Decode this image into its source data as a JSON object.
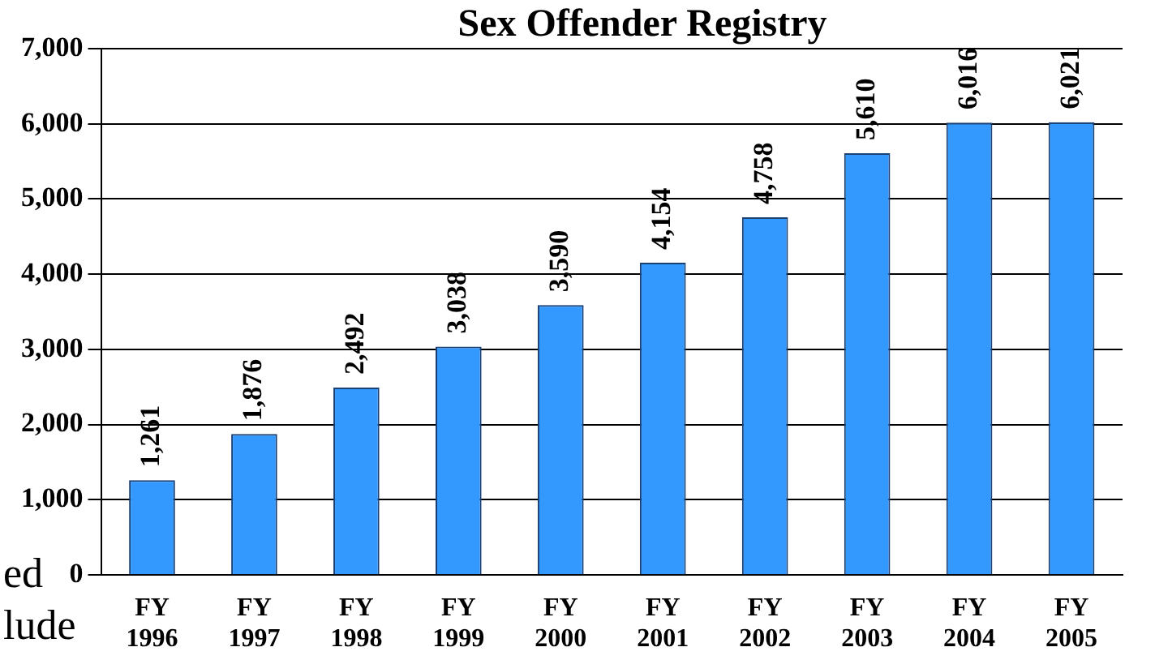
{
  "chart_data": {
    "type": "bar",
    "title": "Sex Offender Registry",
    "categories": [
      "FY 1996",
      "FY 1997",
      "FY 1998",
      "FY 1999",
      "FY 2000",
      "FY 2001",
      "FY 2002",
      "FY 2003",
      "FY 2004",
      "FY 2005"
    ],
    "values": [
      1261,
      1876,
      2492,
      3038,
      3590,
      4154,
      4758,
      5610,
      6016,
      6021
    ],
    "value_labels": [
      "1,261",
      "1,876",
      "2,492",
      "3,038",
      "3,590",
      "4,154",
      "4,758",
      "5,610",
      "6,016",
      "6,021"
    ],
    "color": "#3399ff",
    "ylim": [
      0,
      7000
    ],
    "yticks": [
      0,
      {
        "value": 1000,
        "label": "1,000"
      },
      {
        "value": 2000,
        "label": "2,000"
      },
      {
        "value": 3000,
        "label": "3,000"
      },
      {
        "value": 4000,
        "label": "4,000"
      },
      {
        "value": 5000,
        "label": "5,000"
      },
      {
        "value": 6000,
        "label": "6,000"
      },
      {
        "value": 7000,
        "label": "7,000"
      }
    ],
    "grid": "y",
    "annotations": [
      "ed",
      "lude"
    ]
  }
}
